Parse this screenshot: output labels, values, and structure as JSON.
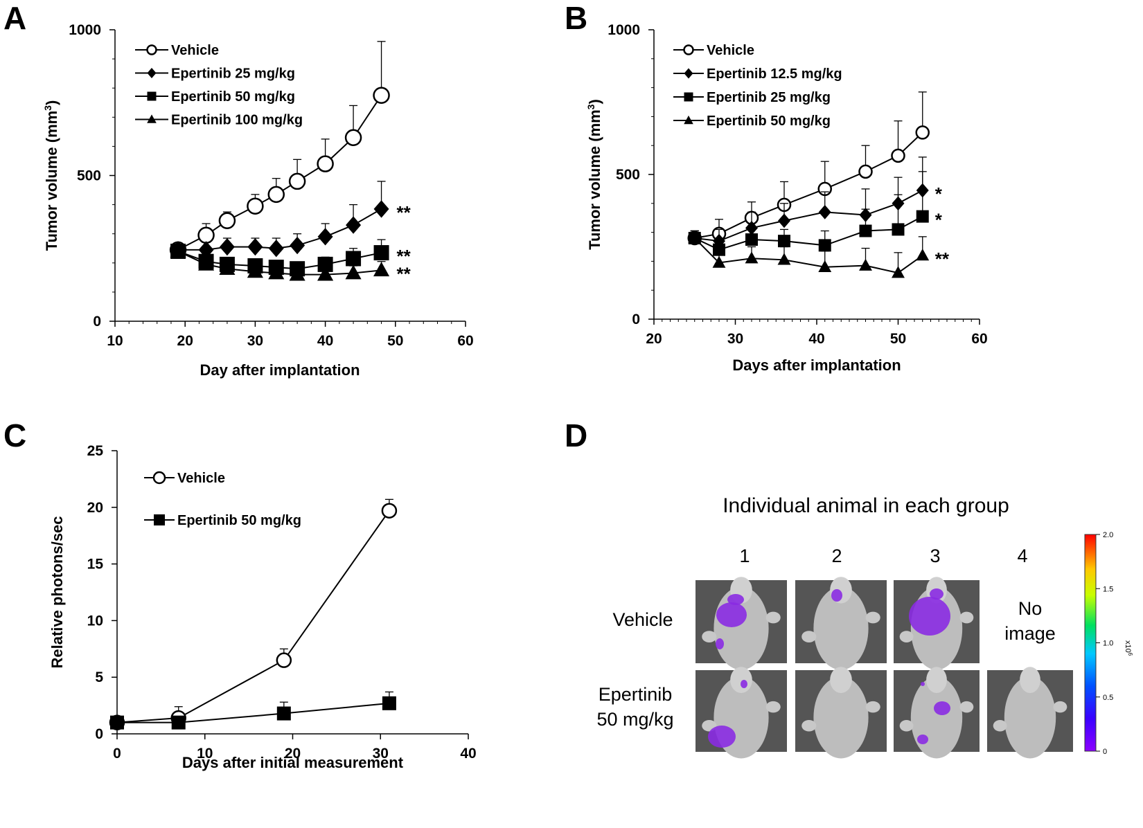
{
  "panels": {
    "A": "A",
    "B": "B",
    "C": "C",
    "D": "D"
  },
  "chart_data": [
    {
      "id": "A",
      "type": "line",
      "xlabel": "Day after implantation",
      "ylabel": "Tumor volume (mm",
      "ylabel_sup": "3",
      "ylabel_end": ")",
      "xlim": [
        10,
        60
      ],
      "ylim": [
        0,
        1000
      ],
      "xticks": [
        10,
        20,
        30,
        40,
        50,
        60
      ],
      "yticks": [
        0,
        500,
        1000
      ],
      "x": [
        19,
        23,
        26,
        30,
        33,
        36,
        40,
        44,
        48
      ],
      "series": [
        {
          "name": "Vehicle",
          "marker": "circle-open",
          "values": [
            245,
            295,
            345,
            395,
            435,
            480,
            540,
            630,
            775
          ],
          "err": [
            15,
            40,
            30,
            40,
            55,
            75,
            85,
            110,
            185
          ]
        },
        {
          "name": "Epertinib 25 mg/kg",
          "marker": "diamond",
          "values": [
            245,
            245,
            255,
            255,
            250,
            260,
            290,
            330,
            385
          ],
          "err": [
            15,
            25,
            30,
            30,
            35,
            40,
            45,
            70,
            95
          ],
          "sig": "**"
        },
        {
          "name": "Epertinib 50 mg/kg",
          "marker": "square",
          "values": [
            240,
            205,
            195,
            190,
            185,
            180,
            195,
            215,
            235
          ],
          "err": [
            15,
            20,
            20,
            20,
            20,
            20,
            25,
            35,
            45
          ],
          "sig": "**"
        },
        {
          "name": "Epertinib 100 mg/kg",
          "marker": "triangle",
          "values": [
            240,
            195,
            180,
            170,
            165,
            160,
            160,
            165,
            175
          ],
          "err": [
            15,
            15,
            15,
            15,
            15,
            15,
            15,
            25,
            30
          ],
          "sig": "**"
        }
      ]
    },
    {
      "id": "B",
      "type": "line",
      "xlabel": "Days after implantation",
      "ylabel": "Tumor volume (mm",
      "ylabel_sup": "3",
      "ylabel_end": ")",
      "xlim": [
        20,
        60
      ],
      "ylim": [
        0,
        1000
      ],
      "xticks": [
        20,
        30,
        40,
        50,
        60
      ],
      "yticks": [
        0,
        500,
        1000
      ],
      "x": [
        25,
        28,
        32,
        36,
        41,
        46,
        50,
        53
      ],
      "series": [
        {
          "name": "Vehicle",
          "marker": "circle-open",
          "values": [
            280,
            295,
            350,
            395,
            450,
            510,
            565,
            645
          ],
          "err": [
            25,
            50,
            55,
            80,
            95,
            90,
            120,
            140
          ]
        },
        {
          "name": "Epertinib 12.5 mg/kg",
          "marker": "diamond",
          "values": [
            280,
            270,
            315,
            340,
            370,
            360,
            400,
            445
          ],
          "err": [
            25,
            40,
            55,
            60,
            70,
            90,
            90,
            115
          ],
          "sig": "*"
        },
        {
          "name": "Epertinib 25 mg/kg",
          "marker": "square",
          "values": [
            280,
            240,
            275,
            270,
            255,
            305,
            310,
            355
          ],
          "err": [
            25,
            35,
            40,
            40,
            50,
            75,
            120,
            155
          ],
          "sig": "*"
        },
        {
          "name": "Epertinib 50 mg/kg",
          "marker": "triangle",
          "values": [
            280,
            195,
            210,
            205,
            180,
            185,
            160,
            220
          ],
          "err": [
            25,
            30,
            40,
            45,
            55,
            60,
            70,
            65
          ],
          "sig": "**"
        }
      ]
    },
    {
      "id": "C",
      "type": "line",
      "xlabel": "Days after initial measurement",
      "ylabel": "Relative photons/sec",
      "xlim": [
        0,
        40
      ],
      "ylim": [
        0,
        25
      ],
      "xticks": [
        0,
        10,
        20,
        30,
        40
      ],
      "yticks": [
        0,
        5,
        10,
        15,
        20,
        25
      ],
      "series": [
        {
          "name": "Vehicle",
          "marker": "circle-open",
          "x": [
            0,
            7,
            19,
            31
          ],
          "values": [
            1.0,
            1.4,
            6.5,
            19.7
          ],
          "err": [
            0.2,
            1.0,
            1.0,
            1.0
          ]
        },
        {
          "name": "Epertinib 50 mg/kg",
          "marker": "square",
          "x": [
            0,
            7,
            19,
            31
          ],
          "values": [
            1.0,
            1.0,
            1.8,
            2.7
          ],
          "err": [
            0.2,
            0.2,
            1.0,
            1.0
          ]
        }
      ]
    }
  ],
  "panelD": {
    "title": "Individual animal in each group",
    "columns": [
      "1",
      "2",
      "3",
      "4"
    ],
    "rows": [
      {
        "label_lines": [
          "Vehicle"
        ]
      },
      {
        "label_lines": [
          "Epertinib",
          "50 mg/kg"
        ]
      }
    ],
    "no_image": [
      "No",
      "image"
    ],
    "colorbar": {
      "ticks": [
        "2.0",
        "1.5",
        "1.0",
        "0.5",
        "0"
      ],
      "unit": "x10",
      "unit_exp": "6"
    }
  },
  "colors": {
    "line": "#000000",
    "signal": "#8a2be2",
    "mouse": "#bdbdbd",
    "imgbg": "#555555"
  }
}
